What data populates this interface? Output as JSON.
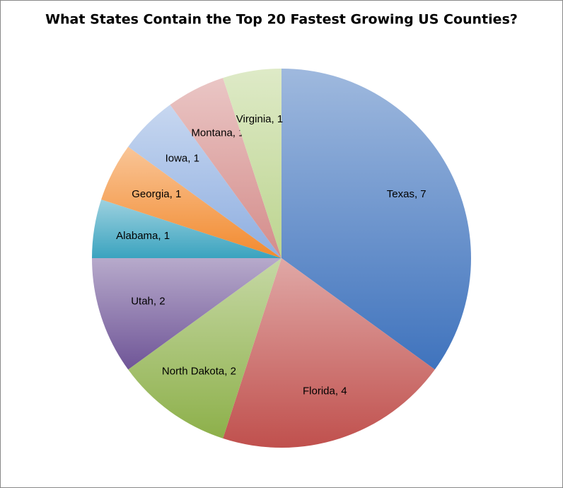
{
  "chart_data": {
    "type": "pie",
    "title": "What States Contain the Top 20 Fastest Growing US Counties?",
    "categories": [
      "Texas",
      "Florida",
      "North Dakota",
      "Utah",
      "Alabama",
      "Georgia",
      "Iowa",
      "Montana",
      "Virginia"
    ],
    "values": [
      7,
      4,
      2,
      2,
      1,
      1,
      1,
      1,
      1
    ],
    "value_labels": [
      "Texas, 7",
      "Florida, 4",
      "North Dakota, 2",
      "Utah, 2",
      "Alabama, 1",
      "Georgia, 1",
      "Iowa, 1",
      "Montana, 1",
      "Virginia, 1"
    ],
    "colors": [
      "#3f73bd",
      "#c0504d",
      "#8db04a",
      "#6f5597",
      "#3aa3bf",
      "#f28a2e",
      "#8eaee0",
      "#d48c8a",
      "#bcd48f"
    ]
  }
}
